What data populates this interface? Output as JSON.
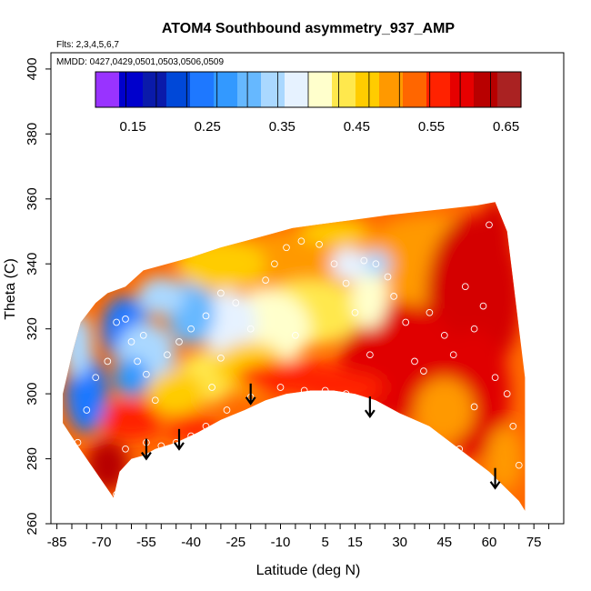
{
  "chart_data": {
    "type": "heatmap",
    "title": "ATOM4 Southbound asymmetry_937_AMP",
    "annotations": {
      "flights": "Flts: 2,3,4,5,6,7",
      "dates": "MMDD: 0427,0429,0501,0503,0506,0509"
    },
    "xlabel": "Latitude (deg N)",
    "ylabel": "Theta (C)",
    "xlim": [
      -87,
      85
    ],
    "ylim": [
      260,
      405
    ],
    "x_tick_values": [
      -85,
      -80,
      -75,
      -70,
      -65,
      -60,
      -55,
      -50,
      -45,
      -40,
      -35,
      -30,
      -25,
      -20,
      -15,
      -10,
      -5,
      0,
      5,
      10,
      15,
      20,
      25,
      30,
      35,
      40,
      45,
      50,
      55,
      60,
      65,
      70,
      75,
      80
    ],
    "x_tick_labels": [
      {
        "value": -85,
        "label": "-85"
      },
      {
        "value": -70,
        "label": "-70"
      },
      {
        "value": -55,
        "label": "-55"
      },
      {
        "value": -40,
        "label": "-40"
      },
      {
        "value": -25,
        "label": "-25"
      },
      {
        "value": -10,
        "label": "-10"
      },
      {
        "value": 5,
        "label": "5"
      },
      {
        "value": 15,
        "label": "15"
      },
      {
        "value": 30,
        "label": "30"
      },
      {
        "value": 45,
        "label": "45"
      },
      {
        "value": 60,
        "label": "60"
      },
      {
        "value": 75,
        "label": "75"
      }
    ],
    "y_ticks": [
      {
        "value": 260,
        "label": "260"
      },
      {
        "value": 280,
        "label": "280"
      },
      {
        "value": 300,
        "label": "300"
      },
      {
        "value": 320,
        "label": "320"
      },
      {
        "value": 340,
        "label": "340"
      },
      {
        "value": 360,
        "label": "360"
      },
      {
        "value": 380,
        "label": "380"
      },
      {
        "value": 400,
        "label": "400"
      }
    ],
    "colorbar": {
      "min": 0.1,
      "max": 0.67,
      "steps": 14,
      "colors": [
        "#9933ff",
        "#0000cc",
        "#0a1aaa",
        "#0048d8",
        "#1e78ff",
        "#3399ff",
        "#66b8ff",
        "#aad8ff",
        "#e6f2ff",
        "#ffffcc",
        "#ffe84d",
        "#ffcc00",
        "#ff9900",
        "#ff6600",
        "#ff2200",
        "#e60000",
        "#b80000",
        "#aa2222"
      ],
      "labels": [
        "0.15",
        "0.25",
        "0.35",
        "0.45",
        "0.55",
        "0.65"
      ],
      "label_values": [
        0.15,
        0.25,
        0.35,
        0.45,
        0.55,
        0.65
      ]
    },
    "tropopause_arrows": [
      {
        "lat": -55,
        "theta": 280
      },
      {
        "lat": -44,
        "theta": 283
      },
      {
        "lat": -20,
        "theta": 297
      },
      {
        "lat": 20,
        "theta": 293
      },
      {
        "lat": 62,
        "theta": 271
      }
    ],
    "samples": [
      {
        "lat": -65,
        "theta": 269
      },
      {
        "lat": -62,
        "theta": 283
      },
      {
        "lat": -55,
        "theta": 285
      },
      {
        "lat": -50,
        "theta": 284
      },
      {
        "lat": -45,
        "theta": 285
      },
      {
        "lat": -40,
        "theta": 287
      },
      {
        "lat": -35,
        "theta": 290
      },
      {
        "lat": -28,
        "theta": 295
      },
      {
        "lat": -20,
        "theta": 299
      },
      {
        "lat": -10,
        "theta": 302
      },
      {
        "lat": -2,
        "theta": 301
      },
      {
        "lat": 5,
        "theta": 301
      },
      {
        "lat": 12,
        "theta": 300
      },
      {
        "lat": 18,
        "theta": 297
      },
      {
        "lat": 30,
        "theta": 291
      },
      {
        "lat": 43,
        "theta": 280
      },
      {
        "lat": 50,
        "theta": 283
      },
      {
        "lat": 70,
        "theta": 278
      },
      {
        "lat": -78,
        "theta": 285
      },
      {
        "lat": -75,
        "theta": 295
      },
      {
        "lat": -72,
        "theta": 305
      },
      {
        "lat": -68,
        "theta": 310
      },
      {
        "lat": -65,
        "theta": 322
      },
      {
        "lat": -60,
        "theta": 316
      },
      {
        "lat": -58,
        "theta": 310
      },
      {
        "lat": -55,
        "theta": 306
      },
      {
        "lat": -52,
        "theta": 298
      },
      {
        "lat": -48,
        "theta": 312
      },
      {
        "lat": -44,
        "theta": 316
      },
      {
        "lat": -40,
        "theta": 320
      },
      {
        "lat": -35,
        "theta": 324
      },
      {
        "lat": -30,
        "theta": 331
      },
      {
        "lat": -25,
        "theta": 328
      },
      {
        "lat": -20,
        "theta": 320
      },
      {
        "lat": -15,
        "theta": 335
      },
      {
        "lat": -12,
        "theta": 340
      },
      {
        "lat": -8,
        "theta": 345
      },
      {
        "lat": -3,
        "theta": 347
      },
      {
        "lat": 3,
        "theta": 346
      },
      {
        "lat": 8,
        "theta": 340
      },
      {
        "lat": 12,
        "theta": 334
      },
      {
        "lat": 15,
        "theta": 325
      },
      {
        "lat": 18,
        "theta": 341
      },
      {
        "lat": 22,
        "theta": 340
      },
      {
        "lat": 26,
        "theta": 336
      },
      {
        "lat": 28,
        "theta": 330
      },
      {
        "lat": 32,
        "theta": 322
      },
      {
        "lat": 35,
        "theta": 310
      },
      {
        "lat": 40,
        "theta": 325
      },
      {
        "lat": 45,
        "theta": 318
      },
      {
        "lat": 48,
        "theta": 312
      },
      {
        "lat": 52,
        "theta": 333
      },
      {
        "lat": 55,
        "theta": 320
      },
      {
        "lat": 58,
        "theta": 327
      },
      {
        "lat": 60,
        "theta": 352
      },
      {
        "lat": 62,
        "theta": 305
      },
      {
        "lat": 66,
        "theta": 300
      },
      {
        "lat": 68,
        "theta": 290
      },
      {
        "lat": 55,
        "theta": 296
      },
      {
        "lat": 38,
        "theta": 307
      },
      {
        "lat": 20,
        "theta": 312
      },
      {
        "lat": -5,
        "theta": 318
      },
      {
        "lat": -30,
        "theta": 311
      },
      {
        "lat": -62,
        "theta": 323
      },
      {
        "lat": -56,
        "theta": 318
      },
      {
        "lat": -33,
        "theta": 302
      }
    ]
  }
}
